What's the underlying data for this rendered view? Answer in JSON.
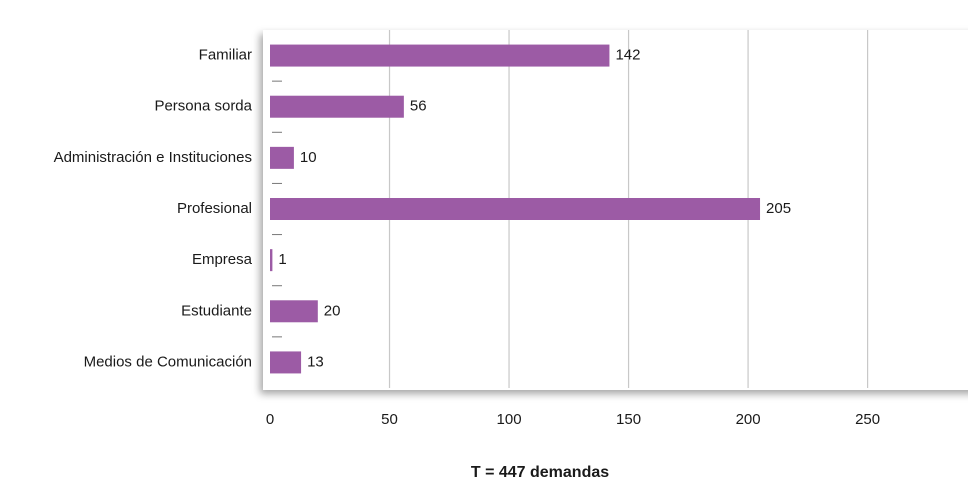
{
  "chart_data": {
    "type": "bar",
    "orientation": "horizontal",
    "categories": [
      "Familiar",
      "Persona sorda",
      "Administración e Instituciones",
      "Profesional",
      "Empresa",
      "Estudiante",
      "Medios de Comunicación"
    ],
    "values": [
      142,
      56,
      10,
      205,
      1,
      20,
      13
    ],
    "color": "#9c5ba5",
    "xlim": [
      0,
      292
    ],
    "xticks": [
      0,
      50,
      100,
      150,
      200,
      250
    ],
    "grid": true,
    "annotation": "T = 447 demandas"
  }
}
